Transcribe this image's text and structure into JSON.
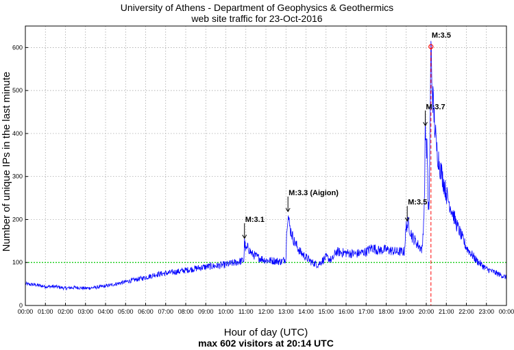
{
  "chart_data": {
    "type": "line",
    "title": "University of Athens - Department of Geophysics & Geothermics",
    "subtitle": "web site traffic for 23-Oct-2016",
    "xlabel": "Hour of day (UTC)",
    "xlabel_sub": "max 602 visitors at 20:14 UTC",
    "ylabel": "Number of unique IPs in the last minute",
    "xlim_hours": [
      0,
      24
    ],
    "ylim": [
      0,
      650
    ],
    "grid": true,
    "x_ticks": [
      "00:00",
      "01:00",
      "02:00",
      "03:00",
      "04:00",
      "05:00",
      "06:00",
      "07:00",
      "08:00",
      "09:00",
      "10:00",
      "11:00",
      "12:00",
      "13:00",
      "14:00",
      "15:00",
      "16:00",
      "17:00",
      "18:00",
      "19:00",
      "20:00",
      "21:00",
      "22:00",
      "23:00",
      "00:00"
    ],
    "y_ticks": [
      0,
      100,
      200,
      300,
      400,
      500,
      600
    ],
    "reference_line": {
      "y": 100,
      "color": "#00cc00",
      "style": "dotted"
    },
    "max_marker": {
      "x_hour": 20.233,
      "y": 602,
      "color": "#ff0000"
    },
    "series": [
      {
        "name": "unique IPs",
        "color": "#0000ff",
        "points": [
          [
            0,
            50
          ],
          [
            0.5,
            48
          ],
          [
            1,
            44
          ],
          [
            1.5,
            44
          ],
          [
            2,
            40
          ],
          [
            2.5,
            42
          ],
          [
            3,
            40
          ],
          [
            3.5,
            42
          ],
          [
            4,
            45
          ],
          [
            4.5,
            50
          ],
          [
            5,
            55
          ],
          [
            5.5,
            60
          ],
          [
            6,
            65
          ],
          [
            6.5,
            72
          ],
          [
            7,
            75
          ],
          [
            7.5,
            78
          ],
          [
            8,
            82
          ],
          [
            8.5,
            86
          ],
          [
            9,
            90
          ],
          [
            9.5,
            92
          ],
          [
            10,
            95
          ],
          [
            10.5,
            100
          ],
          [
            10.9,
            105
          ],
          [
            10.93,
            150
          ],
          [
            11,
            128
          ],
          [
            11.1,
            135
          ],
          [
            11.3,
            120
          ],
          [
            11.6,
            112
          ],
          [
            12,
            105
          ],
          [
            12.4,
            104
          ],
          [
            12.8,
            102
          ],
          [
            13.0,
            110
          ],
          [
            13.05,
            190
          ],
          [
            13.1,
            212
          ],
          [
            13.2,
            180
          ],
          [
            13.4,
            150
          ],
          [
            13.7,
            125
          ],
          [
            14,
            112
          ],
          [
            14.3,
            100
          ],
          [
            14.6,
            95
          ],
          [
            15,
            112
          ],
          [
            15.3,
            105
          ],
          [
            15.5,
            125
          ],
          [
            16,
            122
          ],
          [
            16.5,
            120
          ],
          [
            17,
            125
          ],
          [
            17.3,
            135
          ],
          [
            17.6,
            128
          ],
          [
            18,
            130
          ],
          [
            18.5,
            125
          ],
          [
            18.9,
            125
          ],
          [
            19.0,
            185
          ],
          [
            19.1,
            190
          ],
          [
            19.3,
            160
          ],
          [
            19.6,
            140
          ],
          [
            19.8,
            130
          ],
          [
            19.9,
            230
          ],
          [
            19.95,
            412
          ],
          [
            20.05,
            350
          ],
          [
            20.1,
            210
          ],
          [
            20.15,
            250
          ],
          [
            20.233,
            602
          ],
          [
            20.3,
            500
          ],
          [
            20.5,
            370
          ],
          [
            20.7,
            320
          ],
          [
            21,
            260
          ],
          [
            21.5,
            190
          ],
          [
            22,
            135
          ],
          [
            22.5,
            105
          ],
          [
            23,
            85
          ],
          [
            23.5,
            75
          ],
          [
            24,
            65
          ]
        ]
      }
    ],
    "annotations": [
      {
        "text": "M:3.1",
        "x_hour": 10.93,
        "y": 150,
        "arrow": true
      },
      {
        "text": "M:3.3 (Aigion)",
        "x_hour": 13.1,
        "y": 212,
        "arrow": true
      },
      {
        "text": "M:3.5",
        "x_hour": 19.05,
        "y": 190,
        "arrow": true
      },
      {
        "text": "M:3.7",
        "x_hour": 19.95,
        "y": 412,
        "arrow": true
      },
      {
        "text": "M:3.5",
        "x_hour": 20.233,
        "y": 602,
        "arrow": false
      }
    ]
  }
}
